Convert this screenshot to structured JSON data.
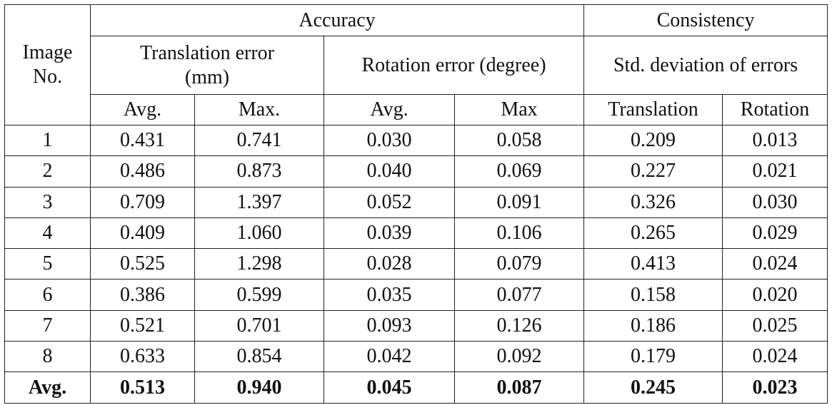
{
  "table": {
    "header": {
      "corner": "Image No.",
      "accuracy": "Accuracy",
      "consistency": "Consistency",
      "translation_error": "Translation error (mm)",
      "rotation_error": "Rotation error (degree)",
      "std_deviation": "Std. deviation of errors",
      "columns": [
        "Avg.",
        "Max.",
        "Avg.",
        "Max",
        "Translation",
        "Rotation"
      ]
    },
    "rows": [
      [
        "1",
        "0.431",
        "0.741",
        "0.030",
        "0.058",
        "0.209",
        "0.013"
      ],
      [
        "2",
        "0.486",
        "0.873",
        "0.040",
        "0.069",
        "0.227",
        "0.021"
      ],
      [
        "3",
        "0.709",
        "1.397",
        "0.052",
        "0.091",
        "0.326",
        "0.030"
      ],
      [
        "4",
        "0.409",
        "1.060",
        "0.039",
        "0.106",
        "0.265",
        "0.029"
      ],
      [
        "5",
        "0.525",
        "1.298",
        "0.028",
        "0.079",
        "0.413",
        "0.024"
      ],
      [
        "6",
        "0.386",
        "0.599",
        "0.035",
        "0.077",
        "0.158",
        "0.020"
      ],
      [
        "7",
        "0.521",
        "0.701",
        "0.093",
        "0.126",
        "0.186",
        "0.025"
      ],
      [
        "8",
        "0.633",
        "0.854",
        "0.042",
        "0.092",
        "0.179",
        "0.024"
      ]
    ],
    "average": [
      "Avg.",
      "0.513",
      "0.940",
      "0.045",
      "0.087",
      "0.245",
      "0.023"
    ]
  }
}
